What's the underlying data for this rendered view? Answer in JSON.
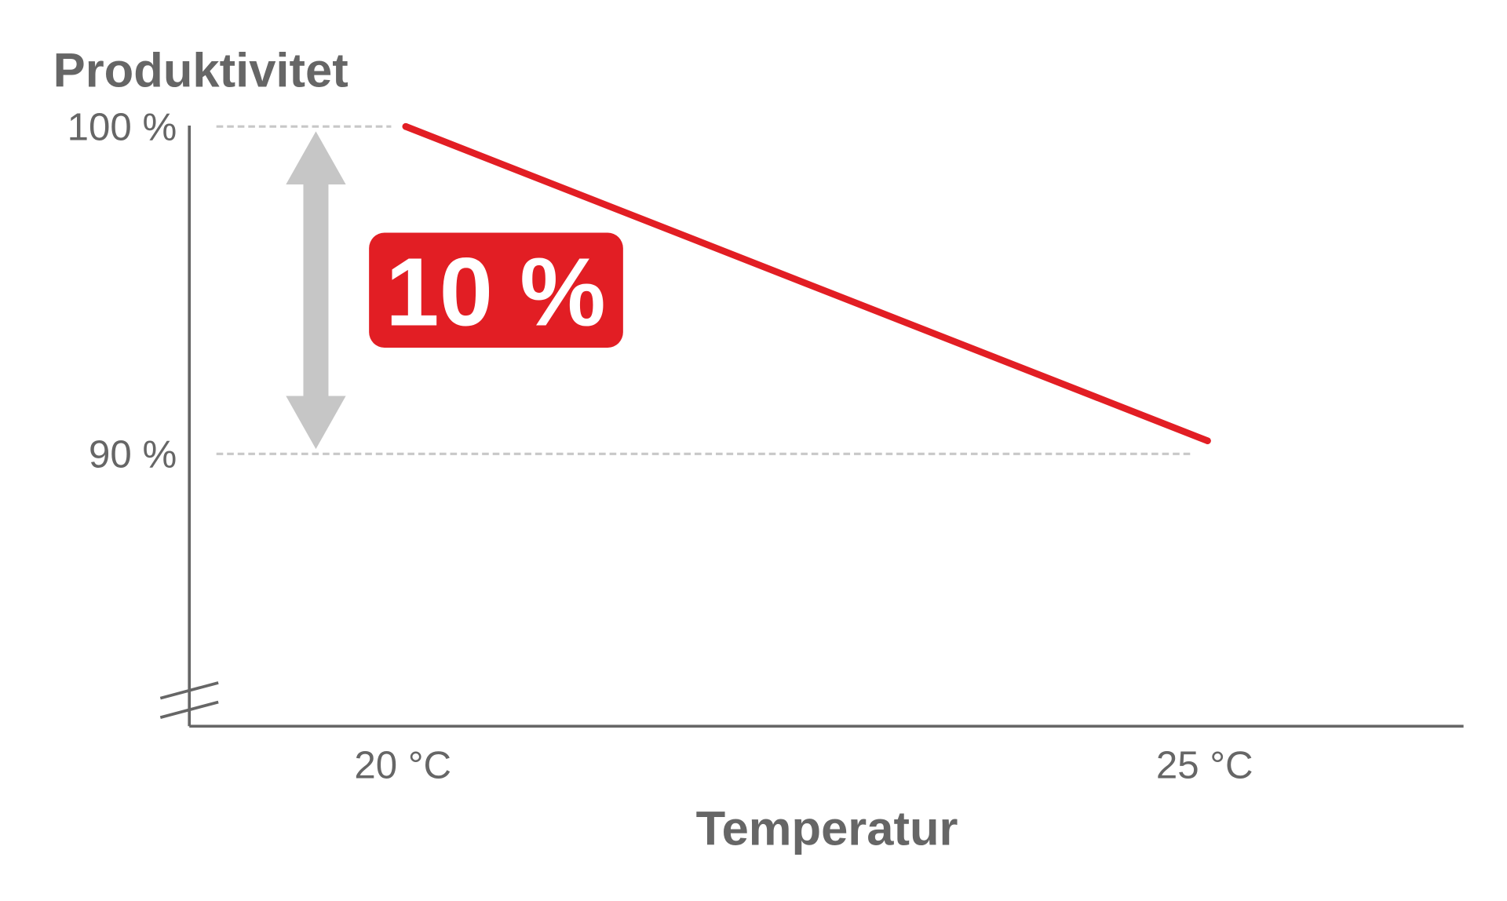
{
  "chart_data": {
    "type": "line",
    "ylabel": "Produktivitet",
    "xlabel": "Temperatur",
    "x": [
      20,
      25
    ],
    "x_tick_labels": [
      "20 °C",
      "25 °C"
    ],
    "y_tick_labels": [
      "100 %",
      "90 %"
    ],
    "y_ticks": [
      100,
      90
    ],
    "series": [
      {
        "values": [
          100,
          90.4
        ]
      }
    ],
    "ylim_shown": [
      90,
      100
    ],
    "y_axis_break": true,
    "grid": "dashed reference lines at 100 % and 90 %",
    "annotation": {
      "label": "10 %",
      "type": "double-arrow",
      "from": 100,
      "to": 90
    },
    "colors": {
      "line": "#e21e24",
      "badge": "#e21e24",
      "arrow": "#c6c6c6",
      "axis": "#666666",
      "text": "#666666"
    }
  }
}
